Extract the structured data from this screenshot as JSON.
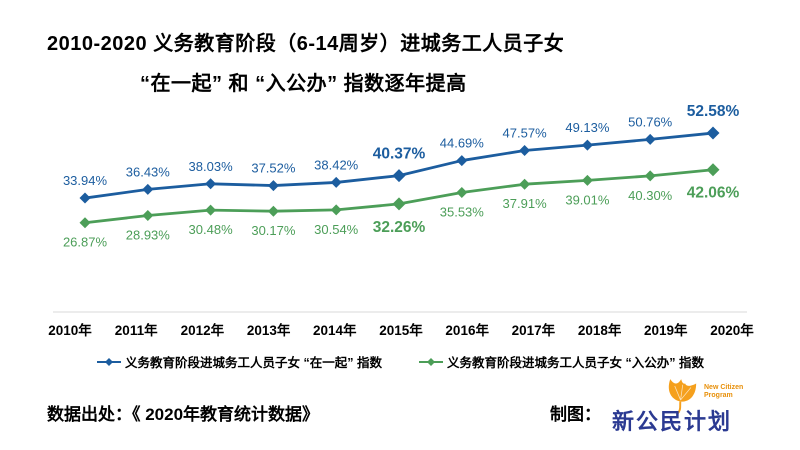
{
  "chart_data": {
    "type": "line",
    "title_line1": "2010-2020 义务教育阶段（6-14周岁）进城务工人员子女",
    "title_line2": "“在一起” 和 “入公办” 指数逐年提高",
    "categories": [
      "2010年",
      "2011年",
      "2012年",
      "2013年",
      "2014年",
      "2015年",
      "2016年",
      "2017年",
      "2018年",
      "2019年",
      "2020年"
    ],
    "series": [
      {
        "name": "义务教育阶段进城务工人员子女 “在一起” 指数",
        "color": "#1c5d9f",
        "values": [
          33.94,
          36.43,
          38.03,
          37.52,
          38.42,
          40.37,
          44.69,
          47.57,
          49.13,
          50.76,
          52.58
        ]
      },
      {
        "name": "义务教育阶段进城务工人员子女 “入公办” 指数",
        "color": "#4c9e58",
        "values": [
          26.87,
          28.93,
          30.48,
          30.17,
          30.54,
          32.26,
          35.53,
          37.91,
          39.01,
          40.3,
          42.06
        ]
      }
    ],
    "emphasized_indices": [
      5,
      10
    ],
    "value_suffix": "%",
    "marker": "diamond",
    "grid": false,
    "legend_position": "bottom",
    "axis_color": "#d9d9d9",
    "ylim": [
      25,
      55
    ]
  },
  "footer": {
    "source_label": "数据出处：《 2020年教育统计数据》",
    "credit_label": "制图：",
    "logo": {
      "cn": "新公民计划",
      "en": "New Citizen Program"
    }
  }
}
